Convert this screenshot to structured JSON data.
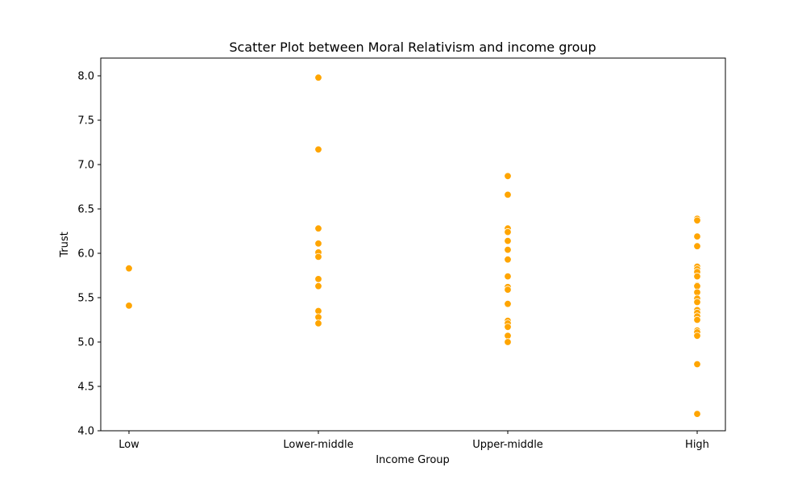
{
  "chart_data": {
    "type": "scatter",
    "title": "Scatter Plot between Moral Relativism and income group",
    "xlabel": "Income Group",
    "ylabel": "Trust",
    "categories": [
      "Low",
      "Lower-middle",
      "Upper-middle",
      "High"
    ],
    "ylim": [
      4.0,
      8.2
    ],
    "yticks": [
      "4.0",
      "4.5",
      "5.0",
      "5.5",
      "6.0",
      "6.5",
      "7.0",
      "7.5",
      "8.0"
    ],
    "grid": false,
    "marker_color": "#FFA500",
    "marker_edge_color": "#ffffff",
    "series": [
      {
        "points": [
          {
            "x": "Low",
            "y": 5.83
          },
          {
            "x": "Low",
            "y": 5.41
          },
          {
            "x": "Lower-middle",
            "y": 7.98
          },
          {
            "x": "Lower-middle",
            "y": 7.17
          },
          {
            "x": "Lower-middle",
            "y": 6.28
          },
          {
            "x": "Lower-middle",
            "y": 6.11
          },
          {
            "x": "Lower-middle",
            "y": 6.01
          },
          {
            "x": "Lower-middle",
            "y": 5.96
          },
          {
            "x": "Lower-middle",
            "y": 5.71
          },
          {
            "x": "Lower-middle",
            "y": 5.63
          },
          {
            "x": "Lower-middle",
            "y": 5.35
          },
          {
            "x": "Lower-middle",
            "y": 5.28
          },
          {
            "x": "Lower-middle",
            "y": 5.21
          },
          {
            "x": "Upper-middle",
            "y": 6.87
          },
          {
            "x": "Upper-middle",
            "y": 6.66
          },
          {
            "x": "Upper-middle",
            "y": 6.28
          },
          {
            "x": "Upper-middle",
            "y": 6.24
          },
          {
            "x": "Upper-middle",
            "y": 6.14
          },
          {
            "x": "Upper-middle",
            "y": 6.04
          },
          {
            "x": "Upper-middle",
            "y": 5.93
          },
          {
            "x": "Upper-middle",
            "y": 5.74
          },
          {
            "x": "Upper-middle",
            "y": 5.62
          },
          {
            "x": "Upper-middle",
            "y": 5.59
          },
          {
            "x": "Upper-middle",
            "y": 5.43
          },
          {
            "x": "Upper-middle",
            "y": 5.24
          },
          {
            "x": "Upper-middle",
            "y": 5.21
          },
          {
            "x": "Upper-middle",
            "y": 5.17
          },
          {
            "x": "Upper-middle",
            "y": 5.07
          },
          {
            "x": "Upper-middle",
            "y": 5.0
          },
          {
            "x": "High",
            "y": 6.39
          },
          {
            "x": "High",
            "y": 6.37
          },
          {
            "x": "High",
            "y": 6.19
          },
          {
            "x": "High",
            "y": 6.08
          },
          {
            "x": "High",
            "y": 5.85
          },
          {
            "x": "High",
            "y": 5.82
          },
          {
            "x": "High",
            "y": 5.79
          },
          {
            "x": "High",
            "y": 5.74
          },
          {
            "x": "High",
            "y": 5.64
          },
          {
            "x": "High",
            "y": 5.63
          },
          {
            "x": "High",
            "y": 5.56
          },
          {
            "x": "High",
            "y": 5.49
          },
          {
            "x": "High",
            "y": 5.45
          },
          {
            "x": "High",
            "y": 5.36
          },
          {
            "x": "High",
            "y": 5.33
          },
          {
            "x": "High",
            "y": 5.29
          },
          {
            "x": "High",
            "y": 5.25
          },
          {
            "x": "High",
            "y": 5.13
          },
          {
            "x": "High",
            "y": 5.11
          },
          {
            "x": "High",
            "y": 5.07
          },
          {
            "x": "High",
            "y": 4.75
          },
          {
            "x": "High",
            "y": 4.19
          }
        ]
      }
    ]
  }
}
